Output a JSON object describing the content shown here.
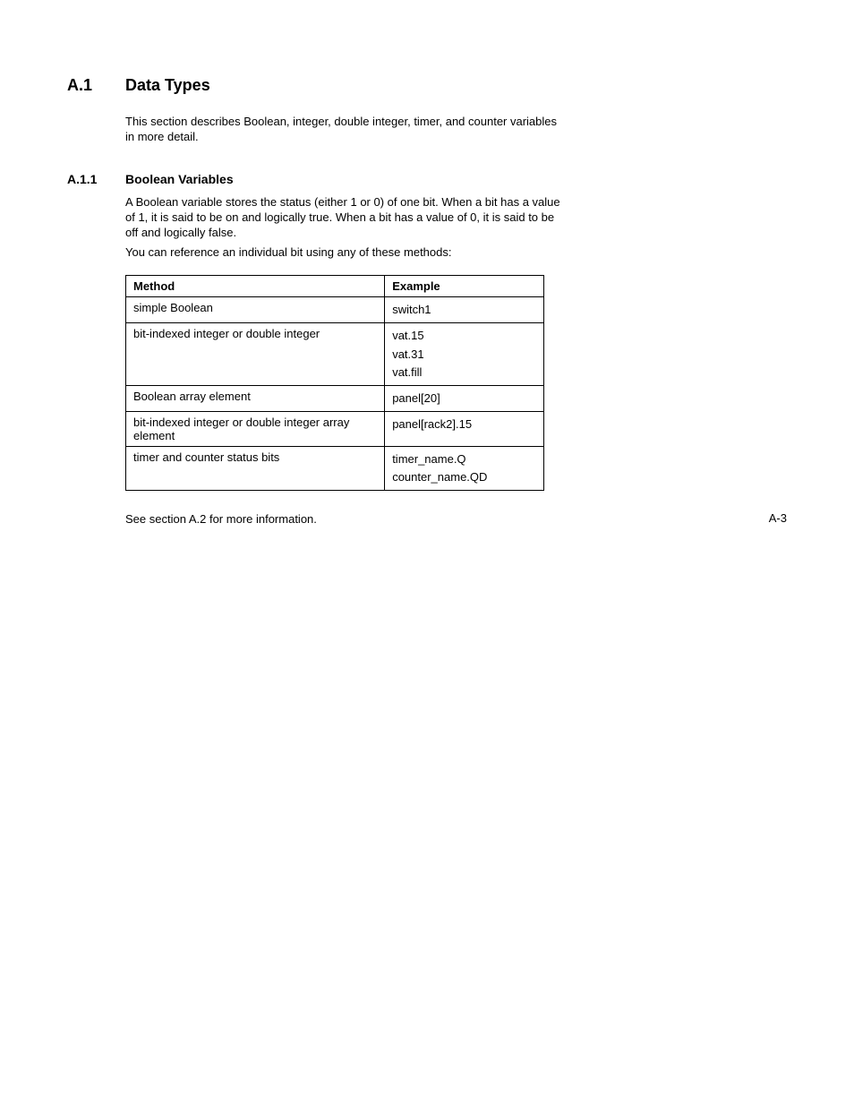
{
  "section": {
    "number": "A.1",
    "title": "Data Types",
    "intro": "This section describes Boolean, integer, double integer, timer, and counter variables in more detail."
  },
  "subsection": {
    "number": "A.1.1",
    "title": "Boolean Variables",
    "para1": "A Boolean variable stores the status (either 1 or 0) of one bit. When a bit has a value of 1, it is said to be on and logically true. When a bit has a value of 0, it is said to be off and logically false.",
    "para2": "You can reference an individual bit using any of these methods:"
  },
  "table": {
    "headers": {
      "method": "Method",
      "example": "Example"
    },
    "rows": [
      {
        "method": "simple Boolean",
        "examples": [
          "switch1"
        ]
      },
      {
        "method": "bit-indexed integer or double integer",
        "examples": [
          "vat.15",
          "vat.31",
          "vat.fill"
        ]
      },
      {
        "method": "Boolean array element",
        "examples": [
          "panel[20]"
        ]
      },
      {
        "method": "bit-indexed integer or double integer array element",
        "examples": [
          "panel[rack2].15"
        ]
      },
      {
        "method": "timer and counter status bits",
        "examples": [
          "timer_name.Q",
          "counter_name.QD"
        ]
      }
    ]
  },
  "footer": "See section A.2 for more information.",
  "page_number": "A-3"
}
